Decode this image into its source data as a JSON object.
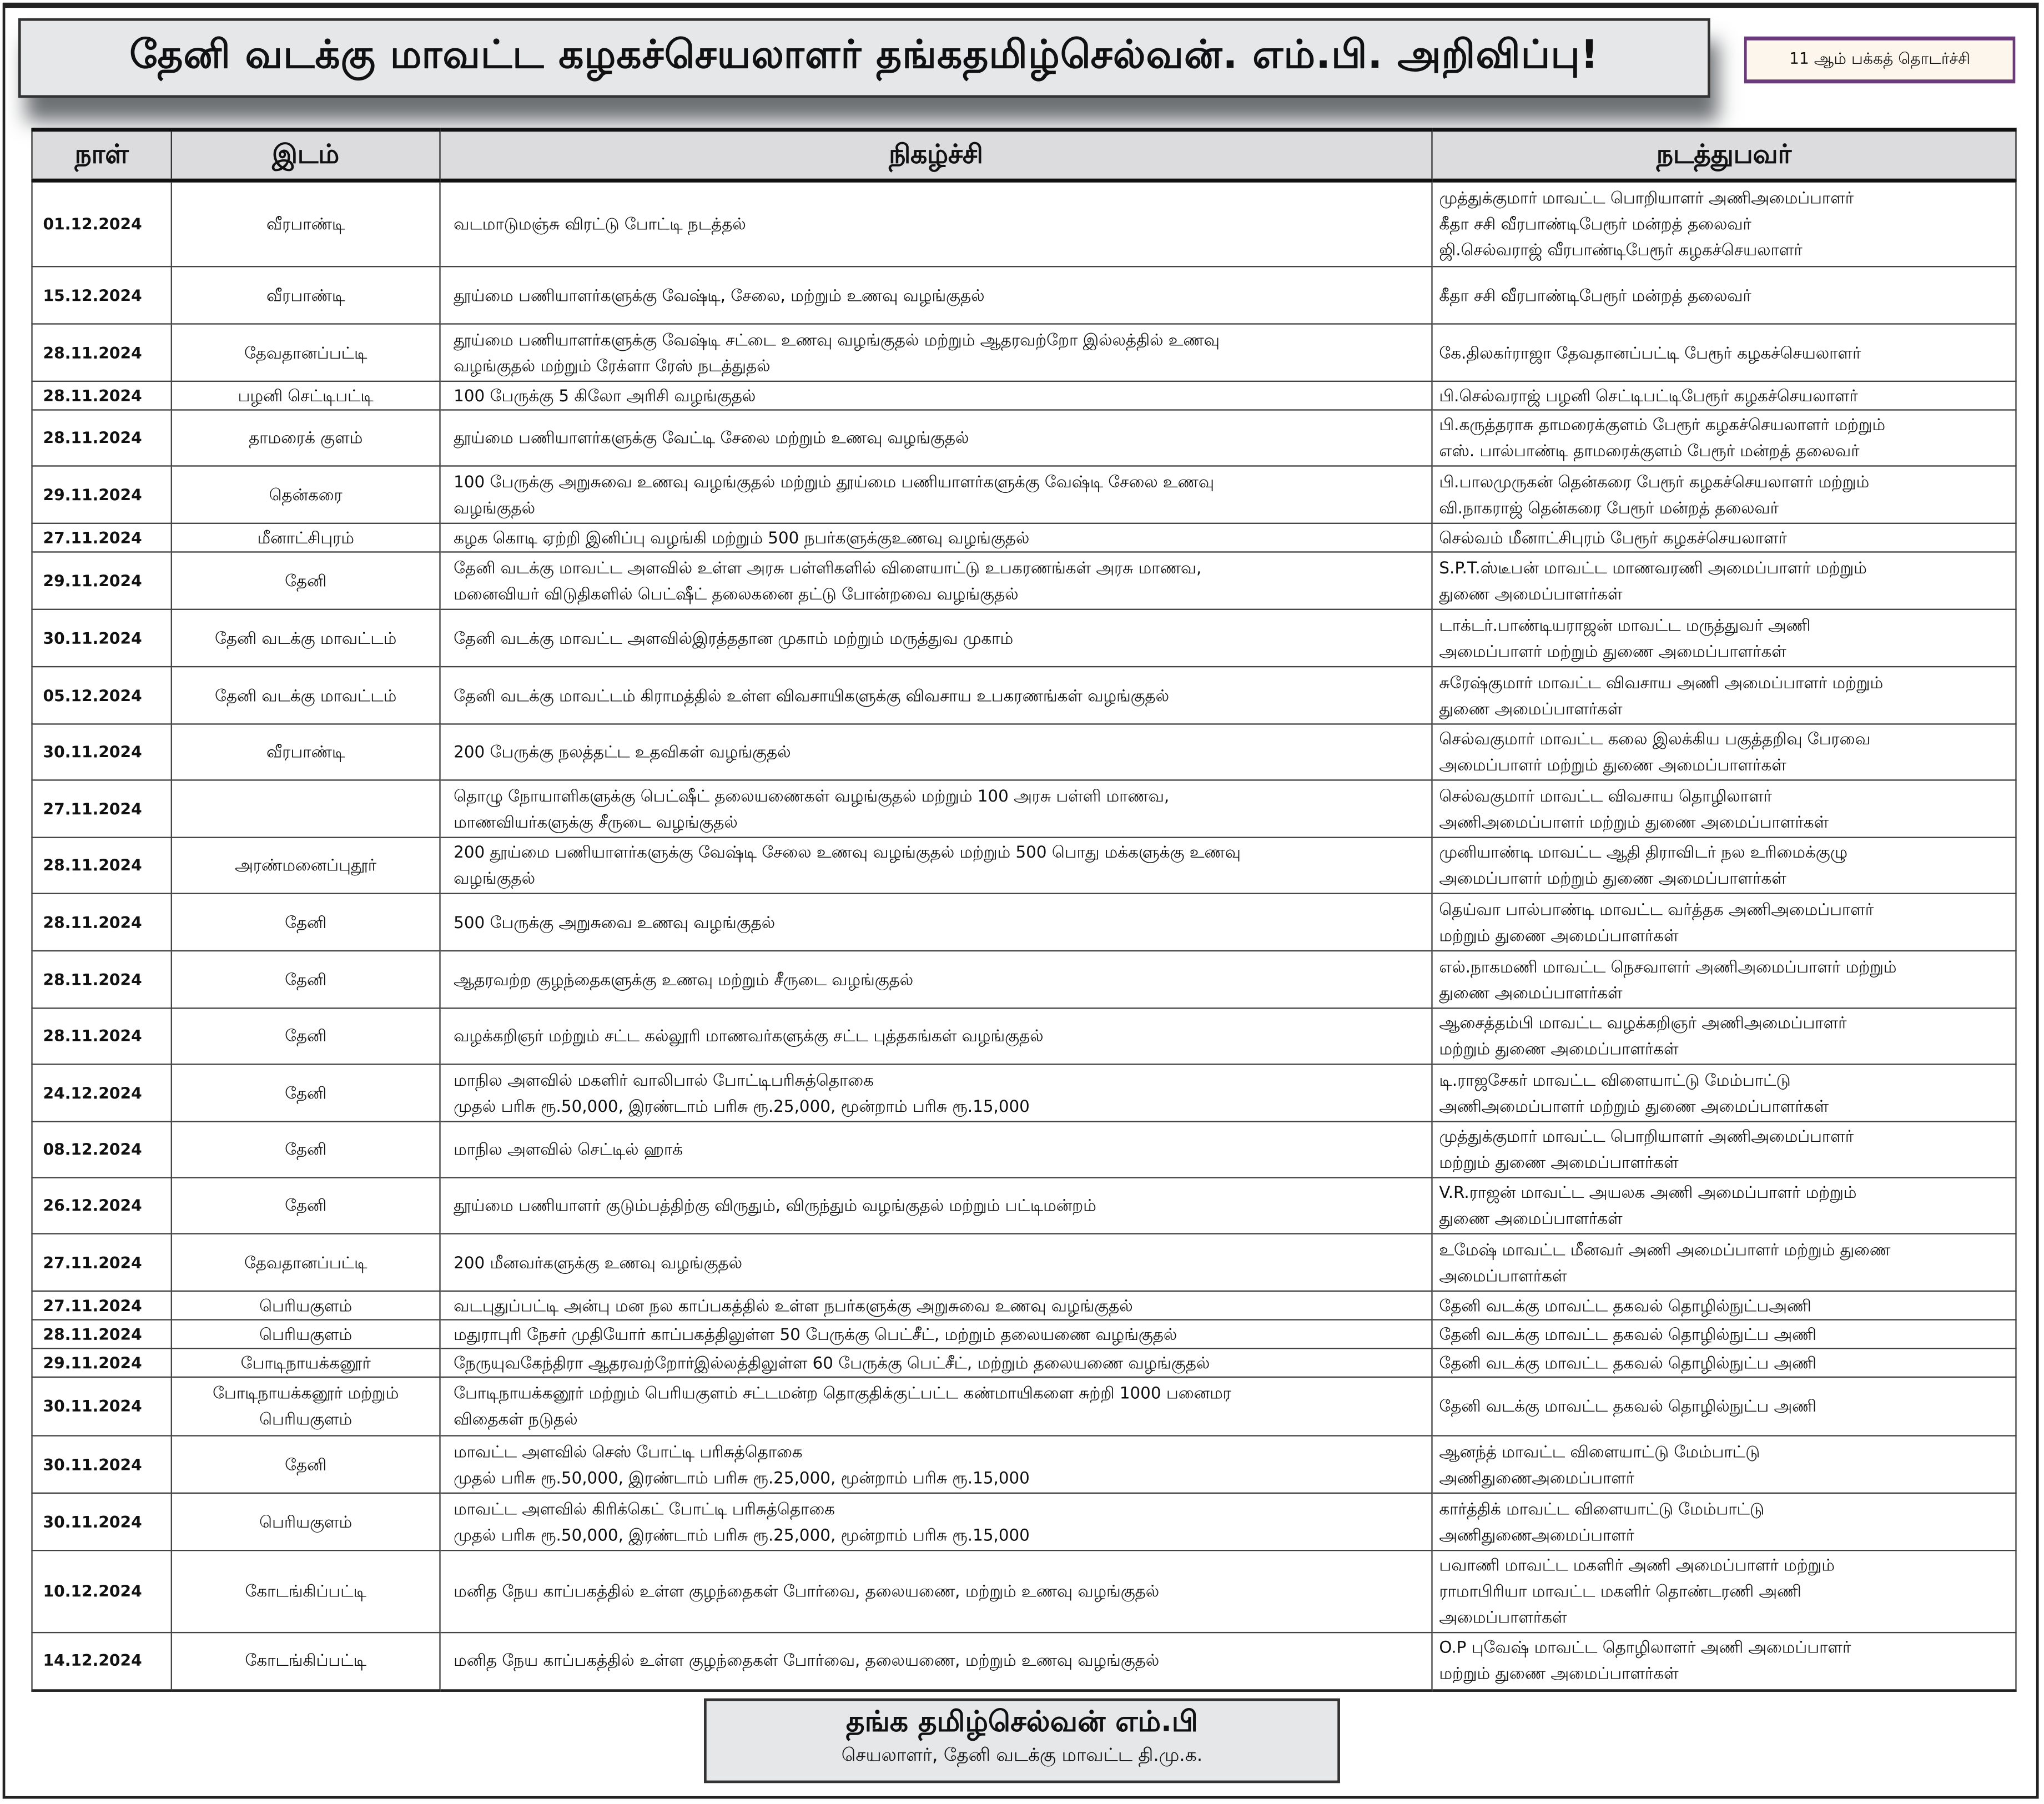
{
  "header": {
    "title": "தேனி வடக்கு மாவட்ட கழகச்செயலாளர் தங்கதமிழ்செல்வன். எம்.பி. அறிவிப்பு!",
    "continuation_badge": "11 ஆம் பக்கத் தொடர்ச்சி"
  },
  "table": {
    "columns": [
      "நாள்",
      "இடம்",
      "நிகழ்ச்சி",
      "நடத்துபவர்"
    ],
    "rows": [
      {
        "date": "01.12.2024",
        "place": "வீரபாண்டி",
        "event": [
          "வடமாடுமஞ்சு விரட்டு போட்டி நடத்தல்"
        ],
        "organizer": [
          "முத்துக்குமார் மாவட்ட பொறியாளர் அணிஅமைப்பாளர்",
          "கீதா சசி வீரபாண்டிபேரூர் மன்றத் தலைவர்",
          "ஜி.செல்வராஜ் வீரபாண்டிபேரூர் கழகச்செயலாளர்"
        ]
      },
      {
        "date": "15.12.2024",
        "place": "வீரபாண்டி",
        "event": [
          "தூய்மை பணியாளர்களுக்கு வேஷ்டி, சேலை, மற்றும் உணவு வழங்குதல்"
        ],
        "organizer": [
          "கீதா சசி வீரபாண்டிபேரூர் மன்றத் தலைவர்"
        ]
      },
      {
        "date": "28.11.2024",
        "place": "தேவதானப்பட்டி",
        "event": [
          "தூய்மை பணியாளர்களுக்கு வேஷ்டி சட்டை உணவு வழங்குதல் மற்றும் ஆதரவற்றோ இல்லத்தில் உணவு",
          "வழங்குதல் மற்றும் ரேக்ளா ரேஸ் நடத்துதல்"
        ],
        "organizer": [
          "கே.திலகர்ராஜா தேவதானப்பட்டி பேரூர் கழகச்செயலாளர்"
        ]
      },
      {
        "date": "28.11.2024",
        "place": "பழனி செட்டிபட்டி",
        "event": [
          "100 பேருக்கு 5 கிலோ அரிசி வழங்குதல்"
        ],
        "organizer": [
          "பி.செல்வராஜ் பழனி செட்டிபட்டிபேரூர் கழகச்செயலாளர்"
        ]
      },
      {
        "date": "28.11.2024",
        "place": "தாமரைக் குளம்",
        "event": [
          "தூய்மை பணியாளர்களுக்கு வேட்டி சேலை மற்றும் உணவு வழங்குதல்"
        ],
        "organizer": [
          "பி.கருத்தராசு தாமரைக்குளம் பேரூர் கழகச்செயலாளர் மற்றும்",
          "எஸ். பால்பாண்டி தாமரைக்குளம் பேரூர் மன்றத் தலைவர்"
        ]
      },
      {
        "date": "29.11.2024",
        "place": "தென்கரை",
        "event": [
          "100 பேருக்கு அறுசுவை உணவு வழங்குதல் மற்றும் தூய்மை பணியாளர்களுக்கு வேஷ்டி சேலை உணவு",
          "வழங்குதல்"
        ],
        "organizer": [
          "பி.பாலமுருகன் தென்கரை பேரூர் கழகச்செயலாளர் மற்றும்",
          "வி.நாகராஜ் தென்கரை பேரூர் மன்றத் தலைவர்"
        ]
      },
      {
        "date": "27.11.2024",
        "place": "மீனாட்சிபுரம்",
        "event": [
          "கழக கொடி ஏற்றி இனிப்பு வழங்கி மற்றும் 500 நபர்களுக்குஉணவு வழங்குதல்"
        ],
        "organizer": [
          "செல்வம் மீனாட்சிபுரம் பேரூர் கழகச்செயலாளர்"
        ]
      },
      {
        "date": "29.11.2024",
        "place": "தேனி",
        "event": [
          "தேனி வடக்கு மாவட்ட அளவில் உள்ள அரசு பள்ளிகளில் விளையாட்டு உபகரணங்கள் அரசு மாணவ,",
          "மனைவியர் விடுதிகளில் பெட்ஷீட் தலைகனை தட்டு போன்றவை வழங்குதல்"
        ],
        "organizer": [
          "S.P.T.ஸ்டீபன் மாவட்ட மாணவரணி அமைப்பாளர் மற்றும்",
          "துணை அமைப்பாளர்கள்"
        ]
      },
      {
        "date": "30.11.2024",
        "place": "தேனி வடக்கு மாவட்டம்",
        "event": [
          "தேனி வடக்கு மாவட்ட அளவில்இரத்ததான முகாம் மற்றும் மருத்துவ முகாம்"
        ],
        "organizer": [
          "டாக்டர்.பாண்டியராஜன் மாவட்ட மருத்துவர் அணி",
          "அமைப்பாளர் மற்றும் துணை அமைப்பாளர்கள்"
        ]
      },
      {
        "date": "05.12.2024",
        "place": "தேனி வடக்கு மாவட்டம்",
        "event": [
          "தேனி வடக்கு மாவட்டம் கிராமத்தில் உள்ள விவசாயிகளுக்கு விவசாய உபகரணங்கள் வழங்குதல்"
        ],
        "organizer": [
          "சுரேஷ்குமார் மாவட்ட விவசாய அணி அமைப்பாளர் மற்றும்",
          "துணை அமைப்பாளர்கள்"
        ]
      },
      {
        "date": "30.11.2024",
        "place": "வீரபாண்டி",
        "event": [
          "200 பேருக்கு நலத்தட்ட உதவிகள் வழங்குதல்"
        ],
        "organizer": [
          "செல்வகுமார் மாவட்ட கலை இலக்கிய பகுத்தறிவு பேரவை",
          "அமைப்பாளர் மற்றும் துணை அமைப்பாளர்கள்"
        ]
      },
      {
        "date": "27.11.2024",
        "place": "",
        "event": [
          "தொழு நோயாளிகளுக்கு பெட்ஷீட் தலையணைகள் வழங்குதல் மற்றும் 100 அரசு பள்ளி மாணவ,",
          "மாணவியர்களுக்கு சீருடை வழங்குதல்"
        ],
        "organizer": [
          "செல்வகுமார் மாவட்ட விவசாய தொழிலாளர்",
          "அணிஅமைப்பாளர் மற்றும் துணை அமைப்பாளர்கள்"
        ]
      },
      {
        "date": "28.11.2024",
        "place": "அரண்மனைப்புதூர்",
        "event": [
          "200 தூய்மை பணியாளர்களுக்கு வேஷ்டி சேலை உணவு வழங்குதல் மற்றும் 500 பொது மக்களுக்கு உணவு",
          "வழங்குதல்"
        ],
        "organizer": [
          "முனியாண்டி மாவட்ட ஆதி திராவிடர் நல உரிமைக்குழு",
          "அமைப்பாளர் மற்றும் துணை அமைப்பாளர்கள்"
        ]
      },
      {
        "date": "28.11.2024",
        "place": "தேனி",
        "event": [
          "500 பேருக்கு அறுசுவை உணவு வழங்குதல்"
        ],
        "organizer": [
          "தெய்வா பால்பாண்டி மாவட்ட வர்த்தக அணிஅமைப்பாளர்",
          "மற்றும் துணை அமைப்பாளர்கள்"
        ]
      },
      {
        "date": "28.11.2024",
        "place": "தேனி",
        "event": [
          "ஆதரவற்ற குழந்தைகளுக்கு உணவு மற்றும் சீருடை வழங்குதல்"
        ],
        "organizer": [
          "எல்.நாகமணி மாவட்ட நெசவாளர் அணிஅமைப்பாளர் மற்றும்",
          "துணை அமைப்பாளர்கள்"
        ]
      },
      {
        "date": "28.11.2024",
        "place": "தேனி",
        "event": [
          "வழக்கறிஞர் மற்றும் சட்ட கல்லூரி மாணவர்களுக்கு சட்ட புத்தகங்கள் வழங்குதல்"
        ],
        "organizer": [
          "ஆசைத்தம்பி மாவட்ட வழக்கறிஞர் அணிஅமைப்பாளர்",
          "மற்றும் துணை அமைப்பாளர்கள்"
        ]
      },
      {
        "date": "24.12.2024",
        "place": "தேனி",
        "event": [
          "மாநில அளவில் மகளிர் வாலிபால் போட்டிபரிசுத்தொகை",
          "முதல் பரிசு ரூ.50,000, இரண்டாம் பரிசு ரூ.25,000, மூன்றாம் பரிசு ரூ.15,000"
        ],
        "organizer": [
          "டி.ராஜசேகர் மாவட்ட விளையாட்டு மேம்பாட்டு",
          "அணிஅமைப்பாளர் மற்றும் துணை அமைப்பாளர்கள்"
        ]
      },
      {
        "date": "08.12.2024",
        "place": "தேனி",
        "event": [
          "மாநில அளவில் செட்டில் ஹாக்"
        ],
        "organizer": [
          "முத்துக்குமார் மாவட்ட பொறியாளர் அணிஅமைப்பாளர்",
          "மற்றும் துணை அமைப்பாளர்கள்"
        ]
      },
      {
        "date": "26.12.2024",
        "place": "தேனி",
        "event": [
          "தூய்மை பணியாளர் குடும்பத்திற்கு விருதும், விருந்தும் வழங்குதல் மற்றும் பட்டிமன்றம்"
        ],
        "organizer": [
          "V.R.ராஜன் மாவட்ட அயலக அணி அமைப்பாளர் மற்றும்",
          "துணை அமைப்பாளர்கள்"
        ]
      },
      {
        "date": "27.11.2024",
        "place": "தேவதானப்பட்டி",
        "event": [
          "200 மீனவர்களுக்கு உணவு வழங்குதல்"
        ],
        "organizer": [
          "உமேஷ் மாவட்ட மீனவர் அணி அமைப்பாளர் மற்றும் துணை",
          "அமைப்பாளர்கள்"
        ]
      },
      {
        "date": "27.11.2024",
        "place": "பெரியகுளம்",
        "event": [
          "வடபுதுப்பட்டி அன்பு மன நல காப்பகத்தில் உள்ள நபர்களுக்கு அறுசுவை உணவு வழங்குதல்"
        ],
        "organizer": [
          "தேனி வடக்கு மாவட்ட தகவல் தொழில்நுட்பஅணி"
        ]
      },
      {
        "date": "28.11.2024",
        "place": "பெரியகுளம்",
        "event": [
          "மதுராபுரி நேசர் முதியோர் காப்பகத்திலுள்ள 50 பேருக்கு பெட்சீட், மற்றும் தலையணை வழங்குதல்"
        ],
        "organizer": [
          "தேனி வடக்கு மாவட்ட தகவல் தொழில்நுட்ப அணி"
        ]
      },
      {
        "date": "29.11.2024",
        "place": "போடிநாயக்கனூர்",
        "event": [
          "நேருயுவகேந்திரா ஆதரவற்றோர்இல்லத்திலுள்ள 60 பேருக்கு பெட்சீட், மற்றும் தலையணை வழங்குதல்"
        ],
        "organizer": [
          "தேனி வடக்கு மாவட்ட தகவல் தொழில்நுட்ப அணி"
        ]
      },
      {
        "date": "30.11.2024",
        "place": "போடிநாயக்கனூர் மற்றும் பெரியகுளம்",
        "event": [
          "போடிநாயக்கனூர் மற்றும் பெரியகுளம் சட்டமன்ற தொகுதிக்குட்பட்ட கண்மாயிகளை சுற்றி  1000 பனைமர",
          "விதைகள் நடுதல்"
        ],
        "organizer": [
          "தேனி வடக்கு மாவட்ட தகவல் தொழில்நுட்ப அணி"
        ]
      },
      {
        "date": "30.11.2024",
        "place": "தேனி",
        "event": [
          "மாவட்ட அளவில் செஸ் போட்டி பரிசுத்தொகை",
          "முதல் பரிசு ரூ.50,000, இரண்டாம் பரிசு ரூ.25,000, மூன்றாம் பரிசு ரூ.15,000"
        ],
        "organizer": [
          "ஆனந்த் மாவட்ட விளையாட்டு மேம்பாட்டு",
          "அணிதுணைஅமைப்பாளர்"
        ]
      },
      {
        "date": "30.11.2024",
        "place": "பெரியகுளம்",
        "event": [
          "மாவட்ட அளவில் கிரிக்கெட் போட்டி பரிசுத்தொகை",
          "முதல் பரிசு ரூ.50,000, இரண்டாம் பரிசு ரூ.25,000, மூன்றாம் பரிசு ரூ.15,000"
        ],
        "organizer": [
          "கார்த்திக் மாவட்ட விளையாட்டு மேம்பாட்டு",
          "அணிதுணைஅமைப்பாளர்"
        ]
      },
      {
        "date": "10.12.2024",
        "place": "கோடங்கிப்பட்டி",
        "event": [
          "மனித நேய காப்பகத்தில் உள்ள குழந்தைகள் போர்வை, தலையணை, மற்றும் உணவு வழங்குதல்"
        ],
        "organizer": [
          "பவாணி மாவட்ட மகளிர் அணி அமைப்பாளர் மற்றும்",
          "ராமாபிரியா மாவட்ட மகளிர் தொண்டரணி அணி",
          "அமைப்பாளர்கள்"
        ]
      },
      {
        "date": "14.12.2024",
        "place": "கோடங்கிப்பட்டி",
        "event": [
          "மனித நேய காப்பகத்தில் உள்ள குழந்தைகள் போர்வை, தலையணை, மற்றும் உணவு வழங்குதல்"
        ],
        "organizer": [
          "O.P புவேஷ் மாவட்ட தொழிலாளர் அணி அமைப்பாளர்",
          "மற்றும் துணை அமைப்பாளர்கள்"
        ]
      }
    ]
  },
  "footer": {
    "name": "தங்க தமிழ்செல்வன் எம்.பி",
    "role": "செயலாளர், தேனி வடக்கு  மாவட்ட தி.மு.க."
  }
}
